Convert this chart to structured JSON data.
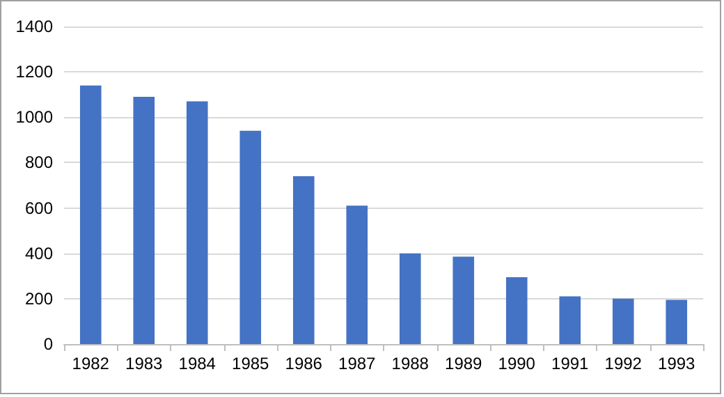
{
  "chart_data": {
    "type": "bar",
    "categories": [
      "1982",
      "1983",
      "1984",
      "1985",
      "1986",
      "1987",
      "1988",
      "1989",
      "1990",
      "1991",
      "1992",
      "1993"
    ],
    "values": [
      1140,
      1090,
      1070,
      940,
      740,
      610,
      400,
      385,
      295,
      210,
      200,
      195
    ],
    "color": "#4472c4",
    "ylim": [
      0,
      1400
    ],
    "yticks": [
      0,
      200,
      400,
      600,
      800,
      1000,
      1200,
      1400
    ],
    "grid": "y"
  }
}
